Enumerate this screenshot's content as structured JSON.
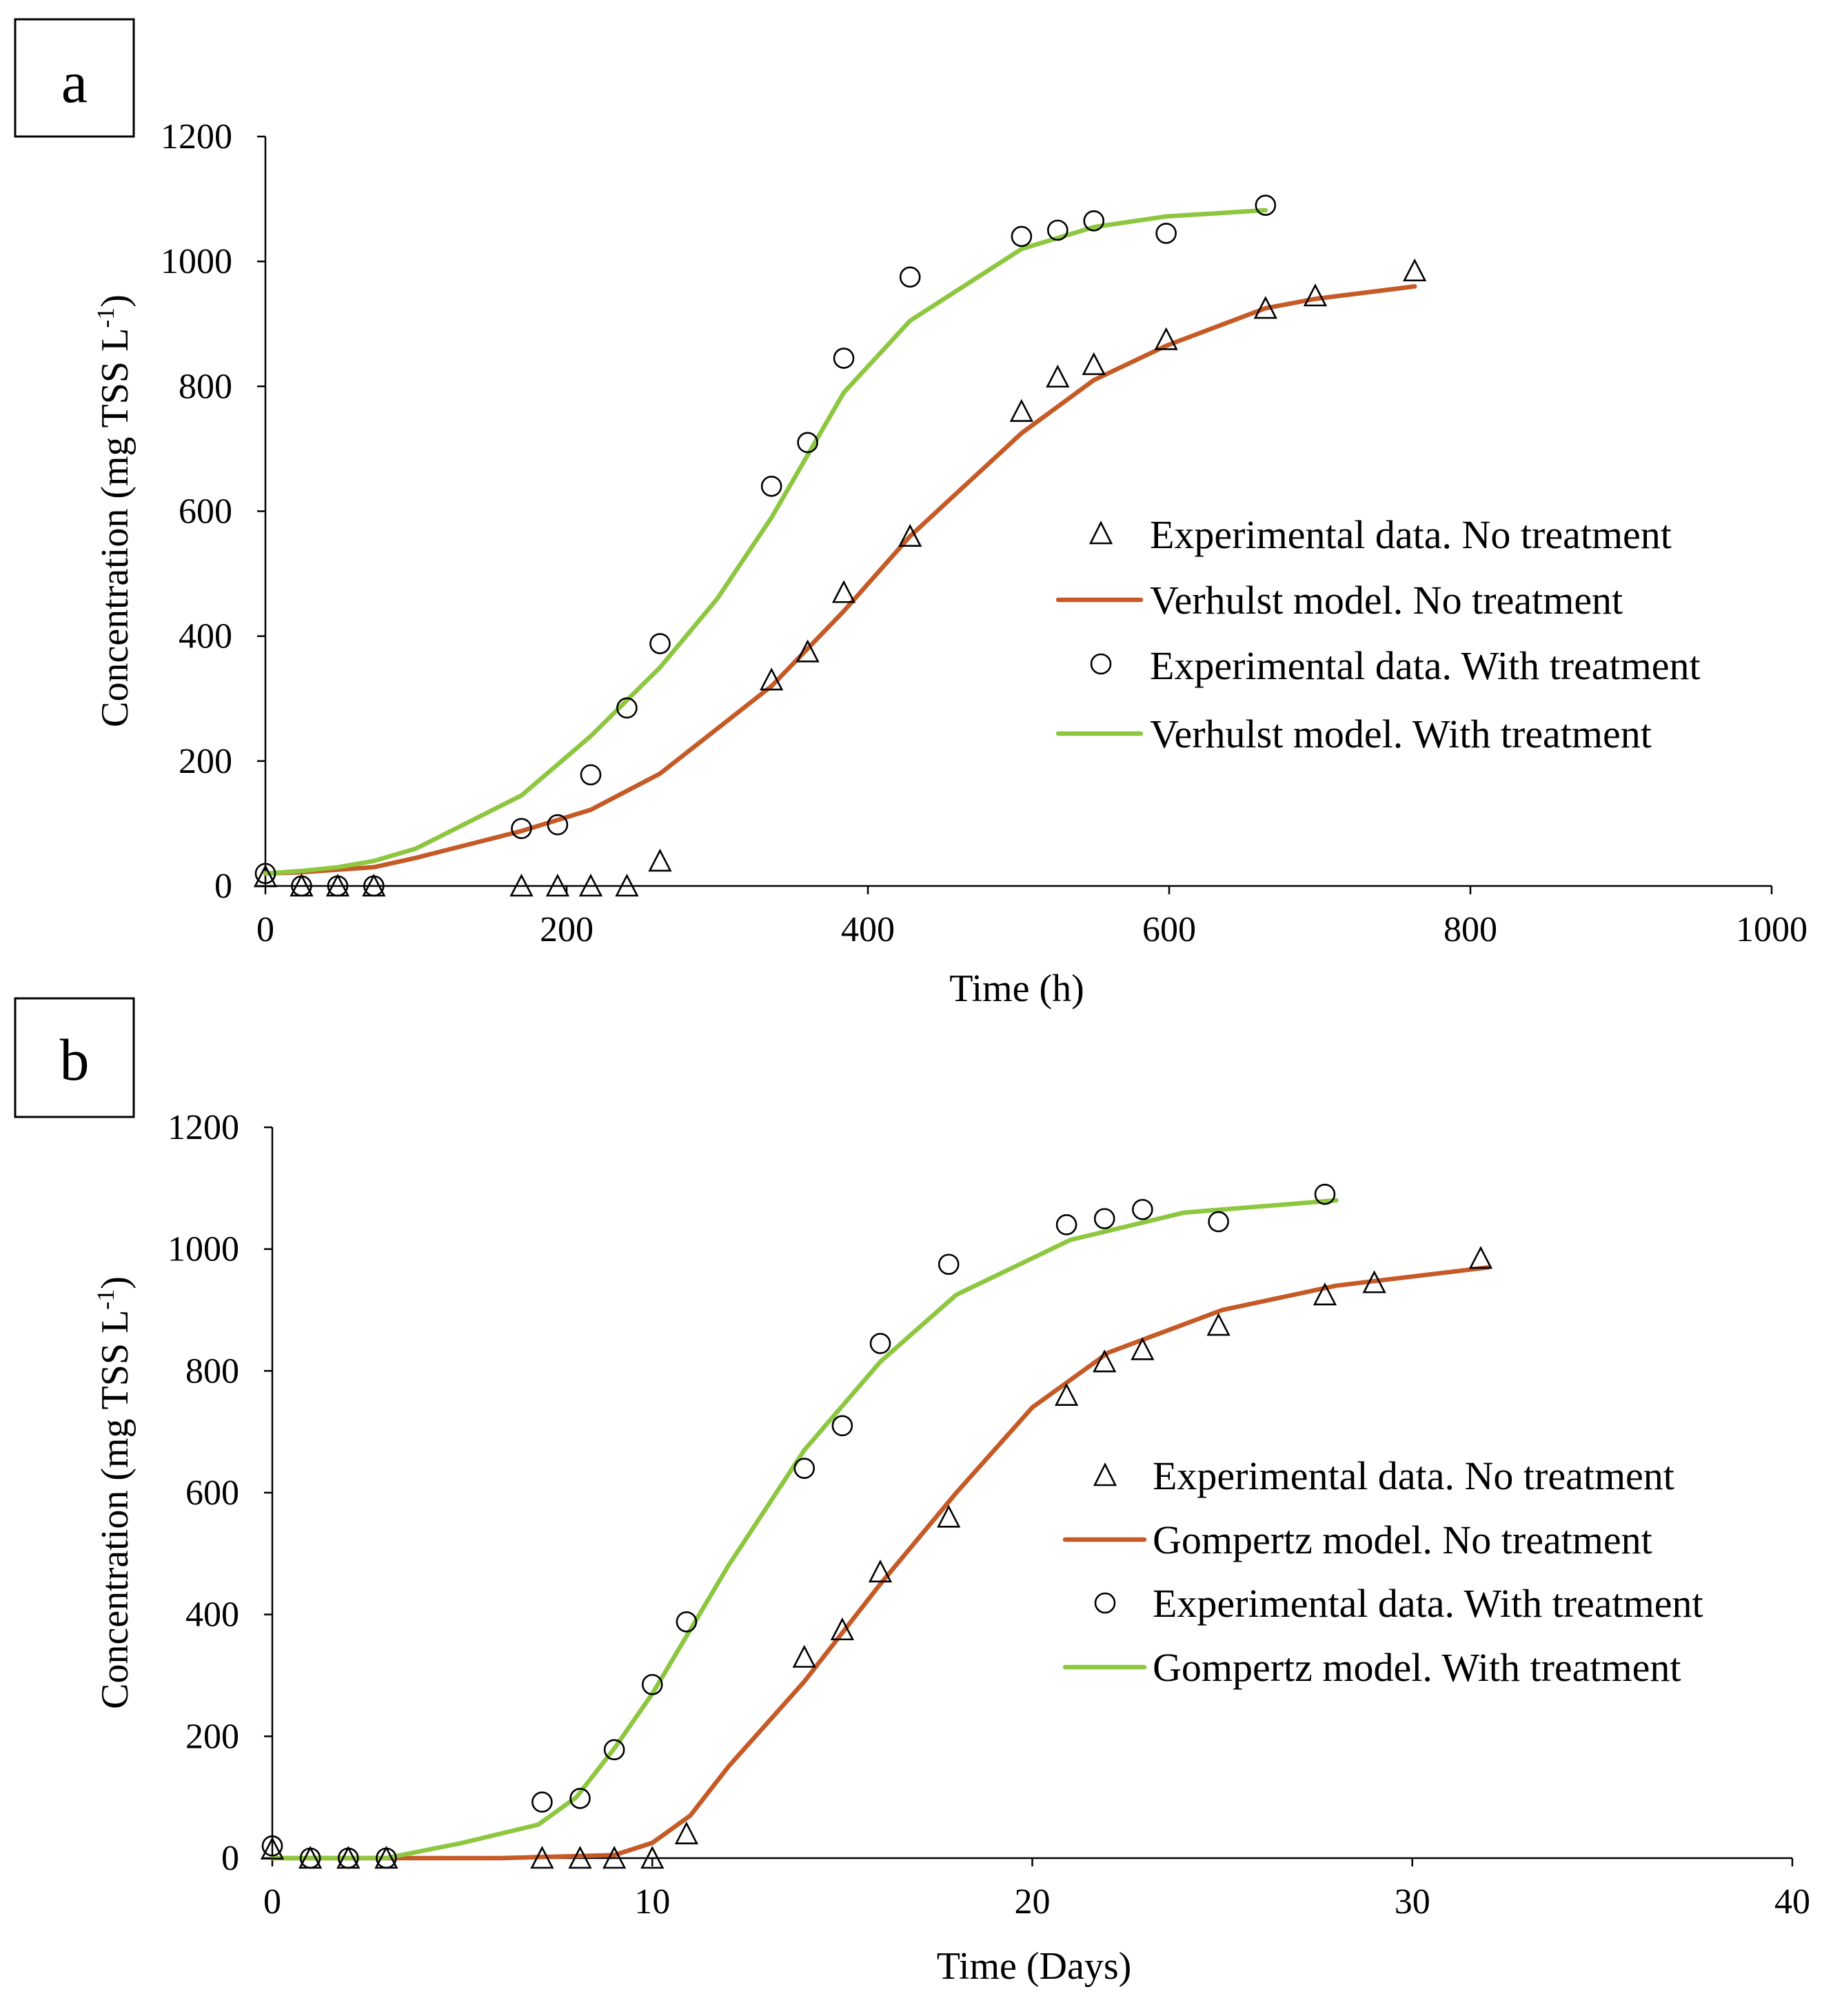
{
  "colors": {
    "no_treatment": "#c55a26",
    "with_treatment": "#8dc63f",
    "marker": "#000000"
  },
  "chart_data": [
    {
      "panel_label": "a",
      "type": "line",
      "title": "",
      "xlabel": "Time (h)",
      "ylabel": "Concentration (mg TSS L",
      "ylabel_sup": "-1",
      "ylabel_close": ")",
      "xlim": [
        0,
        1000
      ],
      "ylim": [
        0,
        1200
      ],
      "xticks": [
        "0",
        "200",
        "400",
        "600",
        "800",
        "1000"
      ],
      "yticks": [
        "0",
        "200",
        "400",
        "600",
        "800",
        "1000",
        "1200"
      ],
      "legend": [
        "Experimental data. No treatment",
        "Verhulst model. No treatment",
        "Experimental data. With treatment",
        "Verhulst model. With treatment"
      ],
      "series": [
        {
          "name": "Experimental data. No treatment",
          "kind": "triangle",
          "x": [
            0,
            24,
            48,
            72,
            170,
            194,
            216,
            240,
            262,
            336,
            360,
            384,
            428,
            502,
            526,
            550,
            598,
            664,
            697,
            763
          ],
          "y": [
            15,
            0,
            0,
            0,
            0,
            0,
            0,
            0,
            40,
            330,
            375,
            470,
            560,
            760,
            815,
            835,
            875,
            925,
            945,
            985
          ]
        },
        {
          "name": "Verhulst model. No treatment",
          "kind": "line",
          "color": "no_treatment",
          "x": [
            0,
            24,
            48,
            72,
            100,
            170,
            216,
            262,
            336,
            384,
            428,
            502,
            550,
            598,
            664,
            697,
            763
          ],
          "y": [
            20,
            22,
            26,
            30,
            45,
            88,
            122,
            180,
            320,
            440,
            560,
            725,
            810,
            865,
            925,
            940,
            960
          ]
        },
        {
          "name": "Experimental data. With treatment",
          "kind": "circle",
          "x": [
            0,
            24,
            48,
            72,
            170,
            194,
            216,
            240,
            262,
            336,
            360,
            384,
            428,
            502,
            526,
            550,
            598,
            664
          ],
          "y": [
            20,
            0,
            0,
            0,
            92,
            98,
            178,
            285,
            388,
            640,
            710,
            845,
            975,
            1040,
            1050,
            1065,
            1045,
            1090
          ]
        },
        {
          "name": "Verhulst model. With treatment",
          "kind": "line",
          "color": "with_treatment",
          "x": [
            0,
            24,
            48,
            72,
            100,
            170,
            216,
            262,
            300,
            336,
            384,
            428,
            502,
            550,
            598,
            664
          ],
          "y": [
            20,
            24,
            30,
            40,
            60,
            145,
            240,
            350,
            460,
            590,
            790,
            905,
            1020,
            1055,
            1072,
            1082
          ]
        }
      ]
    },
    {
      "panel_label": "b",
      "type": "line",
      "title": "",
      "xlabel": "Time (Days)",
      "ylabel": "Concentration (mg TSS L",
      "ylabel_sup": "-1",
      "ylabel_close": ")",
      "xlim": [
        0,
        40
      ],
      "ylim": [
        0,
        1200
      ],
      "xticks": [
        "0",
        "10",
        "20",
        "30",
        "40"
      ],
      "yticks": [
        "0",
        "200",
        "400",
        "600",
        "800",
        "1000",
        "1200"
      ],
      "legend": [
        "Experimental data. No treatment",
        "Gompertz model. No treatment",
        "Experimental data. With treatment",
        "Gompertz model. With treatment"
      ],
      "series": [
        {
          "name": "Experimental data. No treatment",
          "kind": "triangle",
          "x": [
            0,
            1,
            2,
            3,
            7.1,
            8.1,
            9,
            10,
            10.9,
            14,
            15,
            16,
            17.8,
            20.9,
            21.9,
            22.9,
            24.9,
            27.7,
            29,
            31.8
          ],
          "y": [
            15,
            0,
            0,
            0,
            0,
            0,
            0,
            0,
            40,
            330,
            375,
            470,
            560,
            760,
            815,
            835,
            875,
            925,
            945,
            985
          ]
        },
        {
          "name": "Gompertz model. No treatment",
          "kind": "line",
          "color": "no_treatment",
          "x": [
            0,
            3,
            6,
            9,
            10,
            11,
            12,
            14,
            16,
            18,
            20,
            22,
            25,
            28,
            32
          ],
          "y": [
            0,
            0,
            0,
            5,
            25,
            70,
            150,
            290,
            450,
            600,
            740,
            830,
            900,
            940,
            970
          ]
        },
        {
          "name": "Experimental data. With treatment",
          "kind": "circle",
          "x": [
            0,
            1,
            2,
            3,
            7.1,
            8.1,
            9,
            10,
            10.9,
            14,
            15,
            16,
            17.8,
            20.9,
            21.9,
            22.9,
            24.9,
            27.7
          ],
          "y": [
            20,
            0,
            0,
            0,
            92,
            98,
            178,
            285,
            388,
            640,
            710,
            845,
            975,
            1040,
            1050,
            1065,
            1045,
            1090
          ]
        },
        {
          "name": "Gompertz model. With treatment",
          "kind": "line",
          "color": "with_treatment",
          "x": [
            0,
            2,
            3,
            5,
            7,
            8,
            9,
            10,
            12,
            14,
            16,
            18,
            21,
            24,
            28
          ],
          "y": [
            0,
            0,
            0,
            25,
            55,
            100,
            180,
            270,
            480,
            670,
            815,
            925,
            1015,
            1060,
            1080
          ]
        }
      ]
    }
  ]
}
